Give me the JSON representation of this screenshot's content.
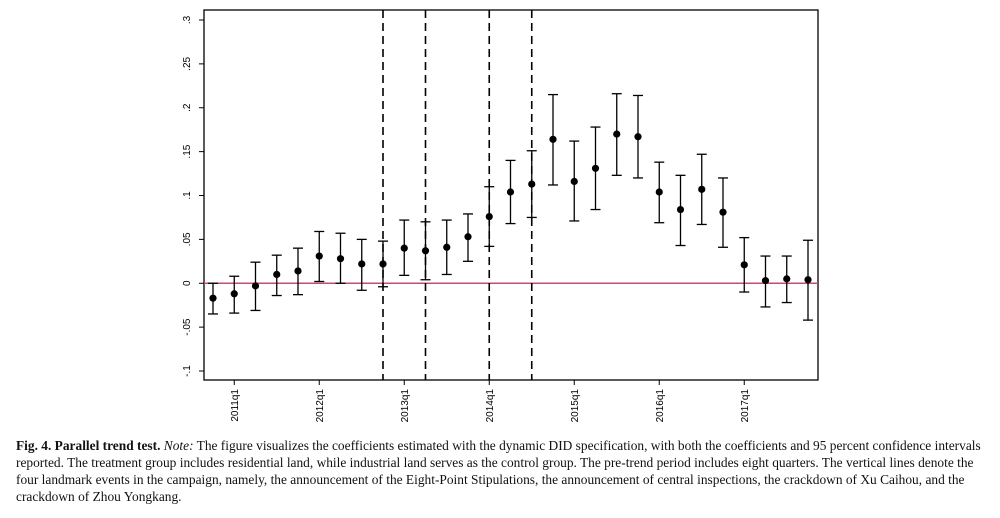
{
  "chart_data": {
    "type": "scatter",
    "subtype": "coefficient plot with 95% confidence intervals",
    "title": "",
    "xlabel": "",
    "ylabel": "",
    "ylim": [
      -0.1,
      0.3
    ],
    "yticks": [
      -0.1,
      -0.05,
      0,
      0.05,
      0.1,
      0.15,
      0.2,
      0.25,
      0.3
    ],
    "ytick_labels": [
      "-.1",
      "-.05",
      "0",
      ".05",
      ".1",
      ".15",
      ".2",
      ".25",
      ".3"
    ],
    "x_index_range": [
      0,
      28
    ],
    "xtick_labels": [
      {
        "index": 1,
        "label": "2011q1"
      },
      {
        "index": 5,
        "label": "2012q1"
      },
      {
        "index": 9,
        "label": "2013q1"
      },
      {
        "index": 13,
        "label": "2014q1"
      },
      {
        "index": 17,
        "label": "2015q1"
      },
      {
        "index": 21,
        "label": "2016q1"
      },
      {
        "index": 25,
        "label": "2017q1"
      }
    ],
    "reference_line": {
      "y": 0,
      "color": "#c0506e"
    },
    "vertical_lines_at_index": [
      8,
      10,
      13,
      15
    ],
    "point_color": "#000000",
    "grid": false,
    "points": [
      {
        "i": 0,
        "coef": -0.017,
        "lo": -0.035,
        "hi": 0.0
      },
      {
        "i": 1,
        "coef": -0.012,
        "lo": -0.034,
        "hi": 0.008
      },
      {
        "i": 2,
        "coef": -0.003,
        "lo": -0.031,
        "hi": 0.024
      },
      {
        "i": 3,
        "coef": 0.01,
        "lo": -0.014,
        "hi": 0.032
      },
      {
        "i": 4,
        "coef": 0.014,
        "lo": -0.013,
        "hi": 0.04
      },
      {
        "i": 5,
        "coef": 0.031,
        "lo": 0.002,
        "hi": 0.059
      },
      {
        "i": 6,
        "coef": 0.028,
        "lo": 0.0,
        "hi": 0.057
      },
      {
        "i": 7,
        "coef": 0.022,
        "lo": -0.008,
        "hi": 0.05
      },
      {
        "i": 8,
        "coef": 0.022,
        "lo": -0.004,
        "hi": 0.048
      },
      {
        "i": 9,
        "coef": 0.04,
        "lo": 0.009,
        "hi": 0.072
      },
      {
        "i": 10,
        "coef": 0.037,
        "lo": 0.004,
        "hi": 0.07
      },
      {
        "i": 11,
        "coef": 0.041,
        "lo": 0.01,
        "hi": 0.072
      },
      {
        "i": 12,
        "coef": 0.053,
        "lo": 0.025,
        "hi": 0.079
      },
      {
        "i": 13,
        "coef": 0.076,
        "lo": 0.042,
        "hi": 0.11
      },
      {
        "i": 14,
        "coef": 0.104,
        "lo": 0.068,
        "hi": 0.14
      },
      {
        "i": 15,
        "coef": 0.113,
        "lo": 0.075,
        "hi": 0.151
      },
      {
        "i": 16,
        "coef": 0.164,
        "lo": 0.112,
        "hi": 0.215
      },
      {
        "i": 17,
        "coef": 0.116,
        "lo": 0.071,
        "hi": 0.162
      },
      {
        "i": 18,
        "coef": 0.131,
        "lo": 0.084,
        "hi": 0.178
      },
      {
        "i": 19,
        "coef": 0.17,
        "lo": 0.123,
        "hi": 0.216
      },
      {
        "i": 20,
        "coef": 0.167,
        "lo": 0.12,
        "hi": 0.214
      },
      {
        "i": 21,
        "coef": 0.104,
        "lo": 0.069,
        "hi": 0.138
      },
      {
        "i": 22,
        "coef": 0.084,
        "lo": 0.043,
        "hi": 0.123
      },
      {
        "i": 23,
        "coef": 0.107,
        "lo": 0.067,
        "hi": 0.147
      },
      {
        "i": 24,
        "coef": 0.081,
        "lo": 0.041,
        "hi": 0.12
      },
      {
        "i": 25,
        "coef": 0.021,
        "lo": -0.01,
        "hi": 0.052
      },
      {
        "i": 26,
        "coef": 0.003,
        "lo": -0.027,
        "hi": 0.031
      },
      {
        "i": 27,
        "coef": 0.005,
        "lo": -0.022,
        "hi": 0.031
      },
      {
        "i": 28,
        "coef": 0.004,
        "lo": -0.042,
        "hi": 0.049
      }
    ]
  },
  "caption": {
    "fig_label": "Fig. 4. Parallel trend test.",
    "note_label": "Note:",
    "text": "The figure visualizes the coefficients estimated with the dynamic DID specification, with both the coefficients and 95 percent confidence intervals reported. The treatment group includes residential land, while industrial land serves as the control group. The pre-trend period includes eight quarters. The vertical lines denote the four landmark events in the campaign, namely, the announcement of the Eight-Point Stipulations, the announcement of central inspections, the crackdown of Xu Caihou, and the crackdown of Zhou Yongkang."
  }
}
